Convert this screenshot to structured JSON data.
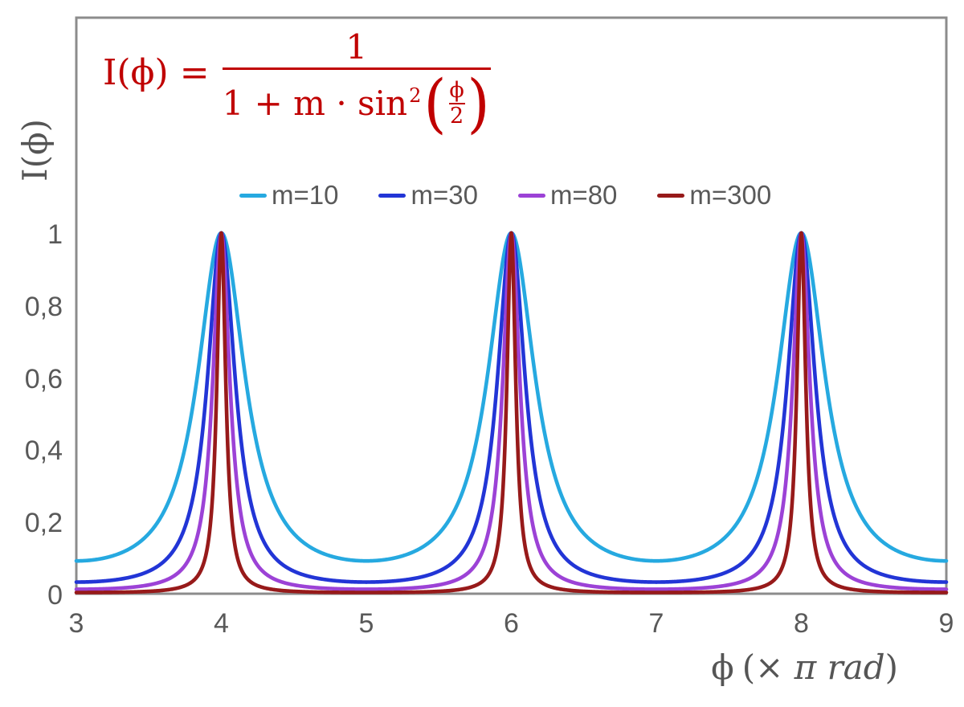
{
  "background": "#ffffff",
  "formula": {
    "color": "#C00000",
    "lhs": "I(ϕ) =",
    "numerator": "1",
    "denominator_prefix": "1 + m · sin",
    "denominator_exponent": "2",
    "open_paren": "(",
    "inner_numerator": "ϕ",
    "inner_denominator": "2",
    "close_paren": ")",
    "as_text": "I(ϕ) = 1 / (1 + m · sin²(ϕ/2))"
  },
  "legend": {
    "items": [
      {
        "label": "m=10",
        "color": "#26A9E0"
      },
      {
        "label": "m=30",
        "color": "#2235D6"
      },
      {
        "label": "m=80",
        "color": "#9C42D6"
      },
      {
        "label": "m=300",
        "color": "#971A1A"
      }
    ]
  },
  "axes": {
    "x": {
      "label_phi": "ϕ",
      "label_open": "(× ",
      "label_italic": "π rad",
      "label_close": ")",
      "label_full": "ϕ (× π rad)",
      "min": 3,
      "max": 9,
      "ticks": [
        {
          "label": "3",
          "value": 3
        },
        {
          "label": "4",
          "value": 4
        },
        {
          "label": "5",
          "value": 5
        },
        {
          "label": "6",
          "value": 6
        },
        {
          "label": "7",
          "value": 7
        },
        {
          "label": "8",
          "value": 8
        },
        {
          "label": "9",
          "value": 9
        }
      ]
    },
    "y": {
      "label": "I(ϕ)",
      "min": 0,
      "ticks": [
        {
          "label": "0",
          "value": 0
        },
        {
          "label": "0,2",
          "value": 0.2
        },
        {
          "label": "0,4",
          "value": 0.4
        },
        {
          "label": "0,6",
          "value": 0.6
        },
        {
          "label": "0,8",
          "value": 0.8
        },
        {
          "label": "1",
          "value": 1
        }
      ]
    }
  },
  "plot_style": {
    "border_color": "#8C8C8C",
    "border_width": 3,
    "curve_width": 4.6,
    "text_color": "#595959",
    "grid": false
  },
  "chart_data": {
    "type": "line",
    "title": "",
    "equation": "I(x) = 1 / (1 + m * sin^2(pi * x / 2)), x expressed in units of pi rad",
    "xlabel": "ϕ (× π rad)",
    "ylabel": "I(ϕ)",
    "x_range": [
      3,
      9
    ],
    "y_axis_ticks": [
      0,
      0.2,
      0.4,
      0.6,
      0.8,
      1
    ],
    "y_range_visible": [
      0,
      1.6
    ],
    "grid": false,
    "legend_position": "top-center",
    "curve_sampling_step_x": 0.004,
    "series": [
      {
        "name": "m=10",
        "m": 10,
        "color": "#26A9E0",
        "peak_value": 1,
        "peaks_at_x": [
          4,
          6,
          8
        ],
        "minimum_value": 0.0909,
        "minima_at_x": [
          3,
          5,
          7,
          9
        ]
      },
      {
        "name": "m=30",
        "m": 30,
        "color": "#2235D6",
        "peak_value": 1,
        "peaks_at_x": [
          4,
          6,
          8
        ],
        "minimum_value": 0.0323,
        "minima_at_x": [
          3,
          5,
          7,
          9
        ]
      },
      {
        "name": "m=80",
        "m": 80,
        "color": "#9C42D6",
        "peak_value": 1,
        "peaks_at_x": [
          4,
          6,
          8
        ],
        "minimum_value": 0.0123,
        "minima_at_x": [
          3,
          5,
          7,
          9
        ]
      },
      {
        "name": "m=300",
        "m": 300,
        "color": "#971A1A",
        "peak_value": 1,
        "peaks_at_x": [
          4,
          6,
          8
        ],
        "minimum_value": 0.0033,
        "minima_at_x": [
          3,
          5,
          7,
          9
        ]
      }
    ]
  }
}
